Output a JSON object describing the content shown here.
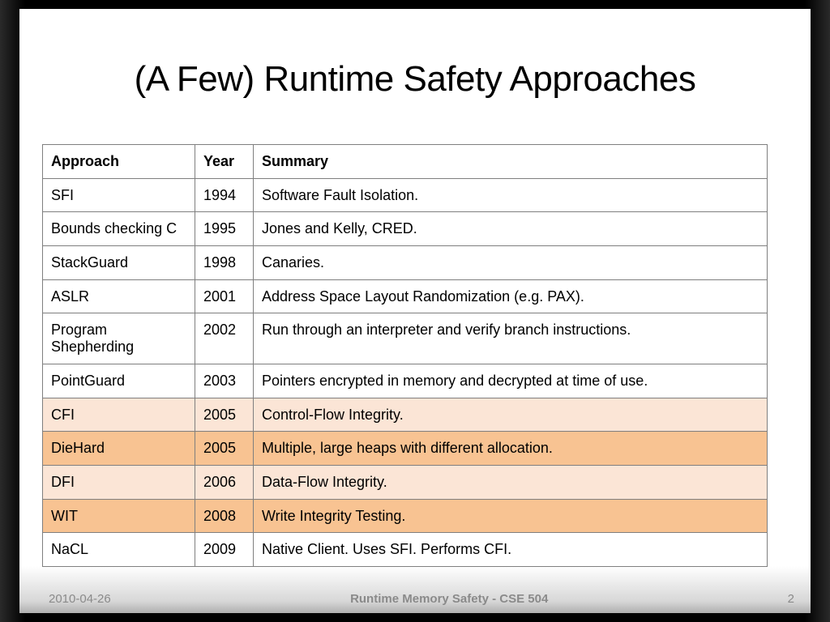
{
  "slide": {
    "title": "(A Few) Runtime Safety Approaches",
    "footer": {
      "date": "2010-04-26",
      "center": "Runtime Memory Safety - CSE 504",
      "page_number": "2"
    }
  },
  "table": {
    "headers": [
      "Approach",
      "Year",
      "Summary"
    ],
    "rows": [
      {
        "approach": "SFI",
        "year": "1994",
        "summary": "Software Fault Isolation.",
        "highlight": "none"
      },
      {
        "approach": "Bounds checking C",
        "year": "1995",
        "summary": "Jones and Kelly, CRED.",
        "highlight": "none"
      },
      {
        "approach": "StackGuard",
        "year": "1998",
        "summary": "Canaries.",
        "highlight": "none"
      },
      {
        "approach": "ASLR",
        "year": "2001",
        "summary": "Address Space Layout Randomization (e.g. PAX).",
        "highlight": "none"
      },
      {
        "approach": "Program Shepherding",
        "year": "2002",
        "summary": "Run through an interpreter and verify branch instructions.",
        "highlight": "none"
      },
      {
        "approach": "PointGuard",
        "year": "2003",
        "summary": "Pointers encrypted in memory and decrypted at time of use.",
        "highlight": "none"
      },
      {
        "approach": "CFI",
        "year": "2005",
        "summary": "Control-Flow Integrity.",
        "highlight": "light"
      },
      {
        "approach": "DieHard",
        "year": "2005",
        "summary": "Multiple, large heaps with different allocation.",
        "highlight": "dark"
      },
      {
        "approach": "DFI",
        "year": "2006",
        "summary": "Data-Flow Integrity.",
        "highlight": "light"
      },
      {
        "approach": "WIT",
        "year": "2008",
        "summary": "Write Integrity Testing.",
        "highlight": "dark"
      },
      {
        "approach": "NaCL",
        "year": "2009",
        "summary": "Native Client. Uses SFI. Performs CFI.",
        "highlight": "none"
      }
    ]
  },
  "colors": {
    "highlight_light": "#fbe5d6",
    "highlight_dark": "#f8c392",
    "table_border": "#7f7f7f",
    "footer_text": "#8a8a8a",
    "background": "#000000",
    "slide_background": "#ffffff"
  }
}
